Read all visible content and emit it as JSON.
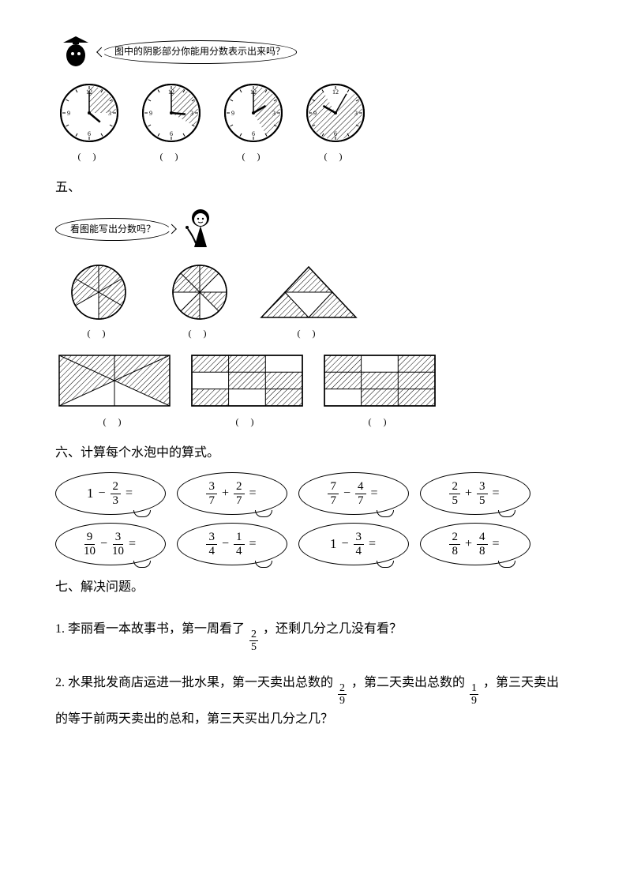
{
  "section4": {
    "bubble_text": "图中的阴影部分你能用分数表示出来吗？",
    "clocks": [
      {
        "hour_angle": 130,
        "minute_angle": 0,
        "shade_start": 0,
        "shade_end": 90
      },
      {
        "hour_angle": 95,
        "minute_angle": 0,
        "shade_start": 0,
        "shade_end": 120
      },
      {
        "hour_angle": 60,
        "minute_angle": 0,
        "shade_start": 0,
        "shade_end": 150
      },
      {
        "hour_angle": 300,
        "minute_angle": 30,
        "shade_start": 45,
        "shade_end": 330
      }
    ],
    "blank": "(    )"
  },
  "section5": {
    "marker": "五、",
    "bubble_text": "看图能写出分数吗？",
    "blank": "(    )"
  },
  "section6": {
    "title": "六、计算每个水泡中的算式。",
    "rows": [
      [
        {
          "a_n": "1",
          "a_d": null,
          "op": "−",
          "b_n": "2",
          "b_d": "3"
        },
        {
          "a_n": "3",
          "a_d": "7",
          "op": "+",
          "b_n": "2",
          "b_d": "7"
        },
        {
          "a_n": "7",
          "a_d": "7",
          "op": "−",
          "b_n": "4",
          "b_d": "7"
        },
        {
          "a_n": "2",
          "a_d": "5",
          "op": "+",
          "b_n": "3",
          "b_d": "5"
        }
      ],
      [
        {
          "a_n": "9",
          "a_d": "10",
          "op": "−",
          "b_n": "3",
          "b_d": "10"
        },
        {
          "a_n": "3",
          "a_d": "4",
          "op": "−",
          "b_n": "1",
          "b_d": "4"
        },
        {
          "a_n": "1",
          "a_d": null,
          "op": "−",
          "b_n": "3",
          "b_d": "4"
        },
        {
          "a_n": "2",
          "a_d": "8",
          "op": "+",
          "b_n": "4",
          "b_d": "8"
        }
      ]
    ]
  },
  "section7": {
    "title": "七、解决问题。",
    "p1_before": "1.  李丽看一本故事书，第一周看了",
    "p1_frac": {
      "n": "2",
      "d": "5"
    },
    "p1_after": "，还剩几分之几没有看？",
    "p2_a": "2.  水果批发商店运进一批水果，第一天卖出总数的",
    "p2_f1": {
      "n": "2",
      "d": "9"
    },
    "p2_b": "，第二天卖出总数的",
    "p2_f2": {
      "n": "1",
      "d": "9"
    },
    "p2_c": "，第三天卖出的等于前两天卖出的总和，第三天买出几分之几？"
  }
}
